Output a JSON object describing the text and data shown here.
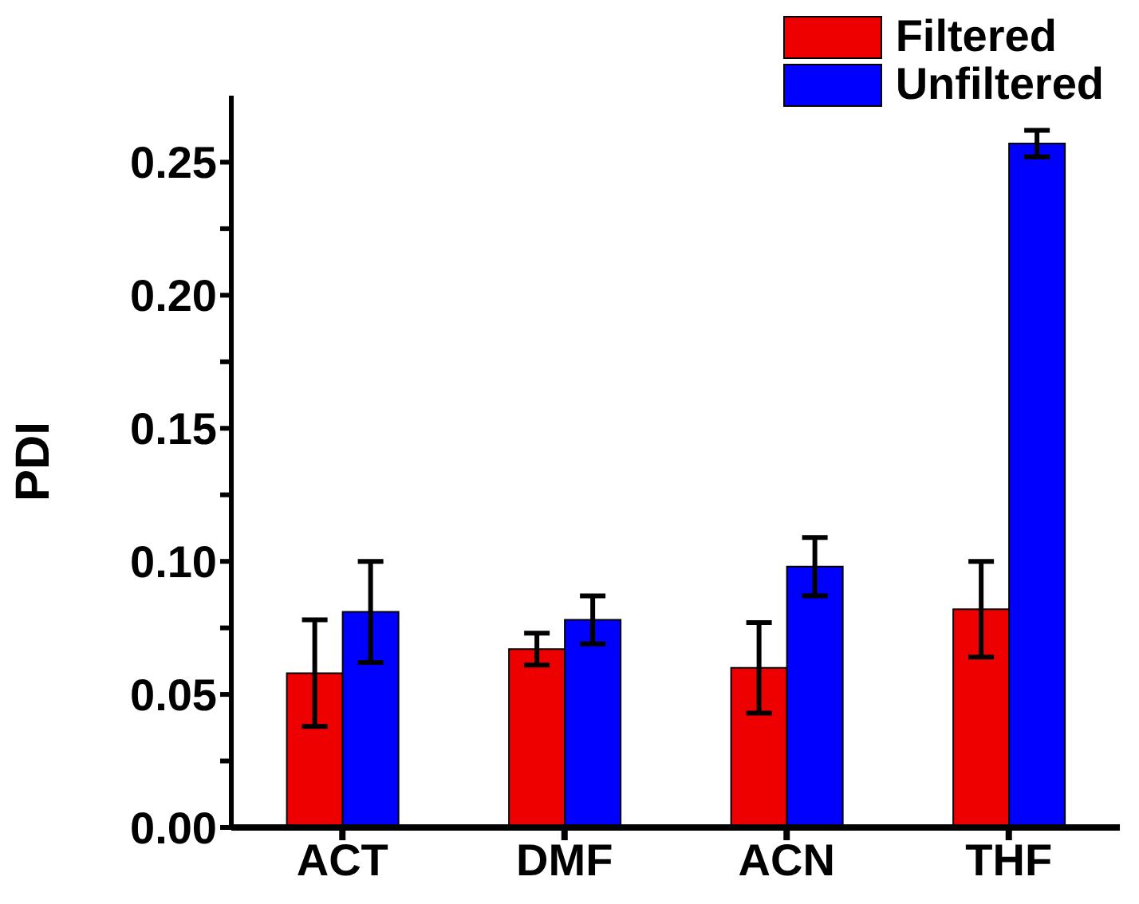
{
  "chart_data": {
    "type": "bar",
    "ylabel": "PDI",
    "categories": [
      "ACT",
      "DMF",
      "ACN",
      "THF"
    ],
    "series": [
      {
        "name": "Filtered",
        "color": "#ee0000",
        "values": [
          0.058,
          0.067,
          0.06,
          0.082
        ],
        "errors": [
          0.02,
          0.006,
          0.017,
          0.018
        ]
      },
      {
        "name": "Unfiltered",
        "color": "#0000ff",
        "values": [
          0.081,
          0.078,
          0.098,
          0.257
        ],
        "errors": [
          0.019,
          0.009,
          0.011,
          0.005
        ]
      }
    ],
    "ylim": [
      0,
      0.275
    ],
    "yticks": [
      {
        "value": 0,
        "label": "0.00"
      },
      {
        "value": 0.025,
        "label": null
      },
      0.05,
      {
        "value": 0.075,
        "label": null
      },
      {
        "value": 0.1,
        "label": "0.10"
      },
      {
        "value": 0.125,
        "label": null
      },
      0.15,
      {
        "value": 0.175,
        "label": null
      },
      {
        "value": 0.2,
        "label": "0.20"
      },
      {
        "value": 0.225,
        "label": null
      },
      0.25
    ],
    "grid": false,
    "legend": "top right"
  }
}
